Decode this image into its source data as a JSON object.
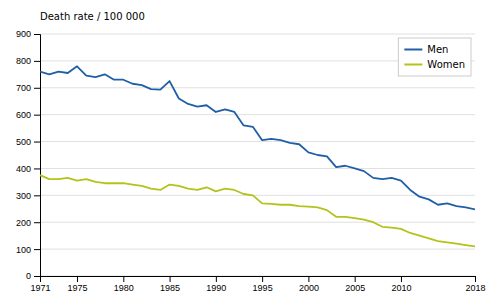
{
  "chart_data": {
    "type": "line",
    "ylabel": "Death rate / 100 000",
    "x": [
      1971,
      1972,
      1973,
      1974,
      1975,
      1976,
      1977,
      1978,
      1979,
      1980,
      1981,
      1982,
      1983,
      1984,
      1985,
      1986,
      1987,
      1988,
      1989,
      1990,
      1991,
      1992,
      1993,
      1994,
      1995,
      1996,
      1997,
      1998,
      1999,
      2000,
      2001,
      2002,
      2003,
      2004,
      2005,
      2006,
      2007,
      2008,
      2009,
      2010,
      2011,
      2012,
      2013,
      2014,
      2015,
      2016,
      2017,
      2018
    ],
    "series": [
      {
        "name": "Men",
        "color": "#1f5fa6",
        "values": [
          760,
          750,
          760,
          755,
          780,
          745,
          740,
          750,
          730,
          730,
          715,
          710,
          695,
          693,
          725,
          660,
          640,
          630,
          635,
          610,
          620,
          610,
          560,
          555,
          505,
          510,
          505,
          495,
          490,
          460,
          450,
          445,
          405,
          410,
          400,
          390,
          365,
          360,
          365,
          355,
          320,
          295,
          285,
          265,
          270,
          260,
          255,
          248
        ]
      },
      {
        "name": "Women",
        "color": "#b5c21a",
        "values": [
          375,
          360,
          360,
          365,
          355,
          360,
          350,
          345,
          345,
          345,
          340,
          335,
          325,
          320,
          340,
          335,
          325,
          320,
          330,
          315,
          325,
          320,
          305,
          300,
          270,
          268,
          265,
          265,
          260,
          258,
          255,
          245,
          220,
          220,
          215,
          210,
          200,
          183,
          180,
          175,
          160,
          150,
          140,
          130,
          125,
          120,
          115,
          110
        ]
      }
    ],
    "xlim": [
      1971,
      2018
    ],
    "xticks": [
      1971,
      1975,
      1980,
      1985,
      1990,
      1995,
      2000,
      2005,
      2010,
      2018
    ],
    "ylim": [
      0,
      900
    ],
    "yticks": [
      0,
      100,
      200,
      300,
      400,
      500,
      600,
      700,
      800,
      900
    ],
    "grid": true,
    "legend": "upper right"
  }
}
